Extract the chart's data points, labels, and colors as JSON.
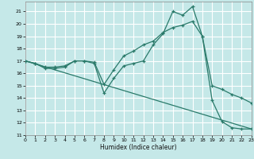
{
  "xlabel": "Humidex (Indice chaleur)",
  "bg_color": "#c5e8e8",
  "grid_color": "#ffffff",
  "line_color": "#2a7a6a",
  "xlim": [
    0,
    23
  ],
  "ylim": [
    11,
    21.8
  ],
  "yticks": [
    11,
    12,
    13,
    14,
    15,
    16,
    17,
    18,
    19,
    20,
    21
  ],
  "xticks": [
    0,
    1,
    2,
    3,
    4,
    5,
    6,
    7,
    8,
    9,
    10,
    11,
    12,
    13,
    14,
    15,
    16,
    17,
    18,
    19,
    20,
    21,
    22,
    23
  ],
  "line1_x": [
    0,
    1,
    2,
    3,
    4,
    5,
    6,
    7,
    8,
    9,
    10,
    11,
    12,
    13,
    14,
    15,
    16,
    17,
    18,
    19,
    20,
    21,
    22,
    23
  ],
  "line1_y": [
    17.0,
    16.8,
    16.5,
    16.5,
    16.6,
    17.0,
    17.0,
    16.8,
    14.4,
    15.6,
    16.6,
    16.8,
    17.0,
    18.3,
    19.2,
    21.0,
    20.7,
    21.4,
    19.0,
    13.8,
    12.1,
    11.6,
    11.5,
    11.5
  ],
  "line2_x": [
    0,
    1,
    2,
    3,
    4,
    5,
    6,
    7,
    8,
    9,
    10,
    11,
    12,
    13,
    14,
    15,
    16,
    17,
    18,
    19,
    20,
    21,
    22,
    23
  ],
  "line2_y": [
    17.0,
    16.8,
    16.4,
    16.4,
    16.5,
    17.0,
    17.0,
    16.9,
    15.1,
    16.3,
    17.4,
    17.8,
    18.3,
    18.6,
    19.3,
    19.7,
    19.9,
    20.2,
    19.0,
    15.0,
    14.7,
    14.3,
    14.0,
    13.6
  ],
  "line3_x": [
    0,
    23
  ],
  "line3_y": [
    17.0,
    11.5
  ]
}
